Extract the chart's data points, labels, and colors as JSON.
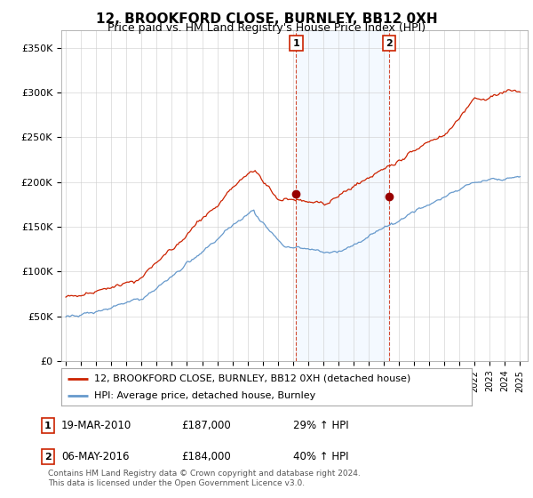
{
  "title": "12, BROOKFORD CLOSE, BURNLEY, BB12 0XH",
  "subtitle": "Price paid vs. HM Land Registry's House Price Index (HPI)",
  "title_fontsize": 11,
  "subtitle_fontsize": 9,
  "ylabel_ticks": [
    "£0",
    "£50K",
    "£100K",
    "£150K",
    "£200K",
    "£250K",
    "£300K",
    "£350K"
  ],
  "ylabel_values": [
    0,
    50000,
    100000,
    150000,
    200000,
    250000,
    300000,
    350000
  ],
  "ylim": [
    0,
    370000
  ],
  "sale1_date": "19-MAR-2010",
  "sale1_price": 187000,
  "sale1_hpi_pct": "29%",
  "sale2_date": "06-MAY-2016",
  "sale2_price": 184000,
  "sale2_hpi_pct": "40%",
  "legend_line1": "12, BROOKFORD CLOSE, BURNLEY, BB12 0XH (detached house)",
  "legend_line2": "HPI: Average price, detached house, Burnley",
  "footer": "Contains HM Land Registry data © Crown copyright and database right 2024.\nThis data is licensed under the Open Government Licence v3.0.",
  "line_color_hpi": "#6699cc",
  "line_color_property": "#cc2200",
  "sale1_x": 2010.21,
  "sale2_x": 2016.34,
  "vline_color": "#cc2200",
  "shade_color": "#ddeeff",
  "background_color": "#ffffff",
  "grid_color": "#cccccc"
}
